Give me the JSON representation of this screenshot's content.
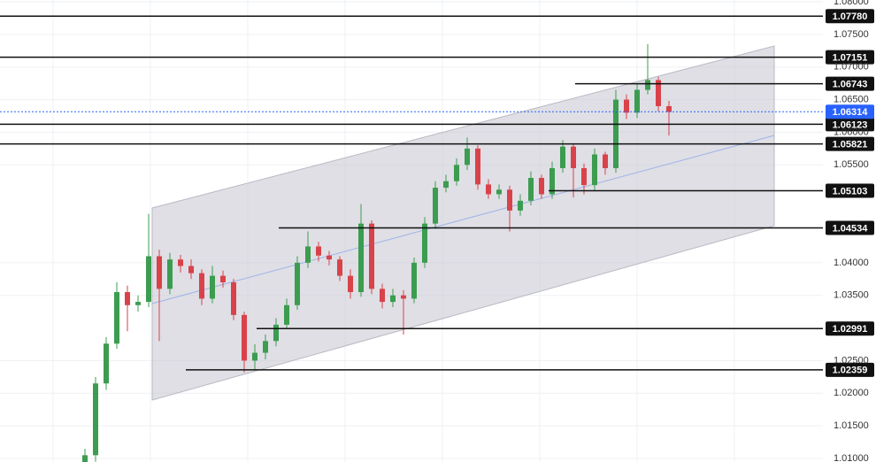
{
  "chart_data": {
    "type": "candlestick",
    "open": [
      1.009,
      1.0105,
      1.0215,
      1.0276,
      1.0355,
      1.0335,
      1.034,
      1.041,
      1.036,
      1.0405,
      1.0395,
      1.0384,
      1.0345,
      1.038,
      1.037,
      1.032,
      1.025,
      1.0262,
      1.028,
      1.0305,
      1.0335,
      1.04,
      1.0425,
      1.0411,
      1.0405,
      1.038,
      1.0355,
      1.046,
      1.036,
      1.034,
      1.035,
      1.0345,
      1.04,
      1.046,
      1.0515,
      1.0525,
      1.055,
      1.0575,
      1.052,
      1.0505,
      1.0512,
      1.048,
      1.0495,
      1.053,
      1.0505,
      1.0545,
      1.0578,
      1.0545,
      1.0519,
      1.0566,
      1.0545,
      1.065,
      1.063,
      1.0665,
      1.068,
      1.064
    ],
    "high": [
      1.0115,
      1.0225,
      1.0286,
      1.037,
      1.0365,
      1.035,
      1.0475,
      1.042,
      1.0415,
      1.0412,
      1.0405,
      1.039,
      1.0395,
      1.0388,
      1.0375,
      1.0325,
      1.0275,
      1.029,
      1.0315,
      1.0345,
      1.041,
      1.0448,
      1.0432,
      1.0418,
      1.041,
      1.039,
      1.049,
      1.0465,
      1.0368,
      1.036,
      1.0358,
      1.0408,
      1.047,
      1.0525,
      1.0535,
      1.056,
      1.0592,
      1.058,
      1.0528,
      1.052,
      1.0518,
      1.0505,
      1.054,
      1.0535,
      1.0555,
      1.0588,
      1.0582,
      1.0552,
      1.0575,
      1.057,
      1.0665,
      1.0658,
      1.0675,
      1.0735,
      1.0685,
      1.0648
    ],
    "low": [
      1.008,
      1.0095,
      1.0205,
      1.0268,
      1.0295,
      1.0325,
      1.0332,
      1.028,
      1.0352,
      1.0385,
      1.0375,
      1.0335,
      1.0338,
      1.0362,
      1.0312,
      1.0232,
      1.0235,
      1.0252,
      1.0272,
      1.0298,
      1.0328,
      1.0392,
      1.0402,
      1.0396,
      1.0372,
      1.0345,
      1.0348,
      1.0352,
      1.033,
      1.0332,
      1.029,
      1.0338,
      1.0392,
      1.0452,
      1.0508,
      1.0518,
      1.0542,
      1.0512,
      1.0498,
      1.0498,
      1.0448,
      1.0472,
      1.0488,
      1.0498,
      1.0498,
      1.0538,
      1.05,
      1.0505,
      1.051,
      1.0535,
      1.0538,
      1.062,
      1.0622,
      1.0658,
      1.0632,
      1.0595
    ],
    "close": [
      1.0105,
      1.0215,
      1.0276,
      1.0355,
      1.0335,
      1.034,
      1.041,
      1.036,
      1.0405,
      1.0395,
      1.0384,
      1.0345,
      1.038,
      1.037,
      1.032,
      1.025,
      1.0262,
      1.028,
      1.0305,
      1.0335,
      1.04,
      1.0425,
      1.0411,
      1.0405,
      1.038,
      1.0355,
      1.046,
      1.036,
      1.034,
      1.035,
      1.0345,
      1.04,
      1.046,
      1.0515,
      1.0525,
      1.055,
      1.0575,
      1.052,
      1.0505,
      1.0512,
      1.048,
      1.0495,
      1.053,
      1.0505,
      1.0545,
      1.0578,
      1.0545,
      1.0519,
      1.0566,
      1.0545,
      1.065,
      1.063,
      1.0665,
      1.068,
      1.064,
      1.0631
    ],
    "up_color": "#3c9c50",
    "down_color": "#d9424a",
    "ylim": [
      1.00946,
      1.08027
    ],
    "yticks": [
      {
        "value": 1.08,
        "label": "1.08000"
      },
      {
        "value": 1.075,
        "label": "1.07500"
      },
      {
        "value": 1.07,
        "label": "1.07000"
      },
      {
        "value": 1.065,
        "label": "1.06500"
      },
      {
        "value": 1.06,
        "label": "1.06000"
      },
      {
        "value": 1.055,
        "label": "1.05500"
      },
      {
        "value": 1.04,
        "label": "1.04000"
      },
      {
        "value": 1.035,
        "label": "1.03500"
      },
      {
        "value": 1.025,
        "label": "1.02500"
      },
      {
        "value": 1.02,
        "label": "1.02000"
      },
      {
        "value": 1.015,
        "label": "1.01500"
      },
      {
        "value": 1.01,
        "label": "1.01000"
      }
    ],
    "grid": true,
    "levels": [
      {
        "value": 1.0778,
        "label": "1.07780"
      },
      {
        "value": 1.07151,
        "label": "1.07151"
      },
      {
        "value": 1.06743,
        "label": "1.06743"
      },
      {
        "value": 1.06123,
        "label": "1.06123"
      },
      {
        "value": 1.05821,
        "label": "1.05821"
      },
      {
        "value": 1.05103,
        "label": "1.05103"
      },
      {
        "value": 1.04534,
        "label": "1.04534"
      },
      {
        "value": 1.02991,
        "label": "1.02991"
      },
      {
        "value": 1.02359,
        "label": "1.02359"
      }
    ],
    "current_price": {
      "value": 1.06314,
      "label": "1.06314"
    }
  }
}
